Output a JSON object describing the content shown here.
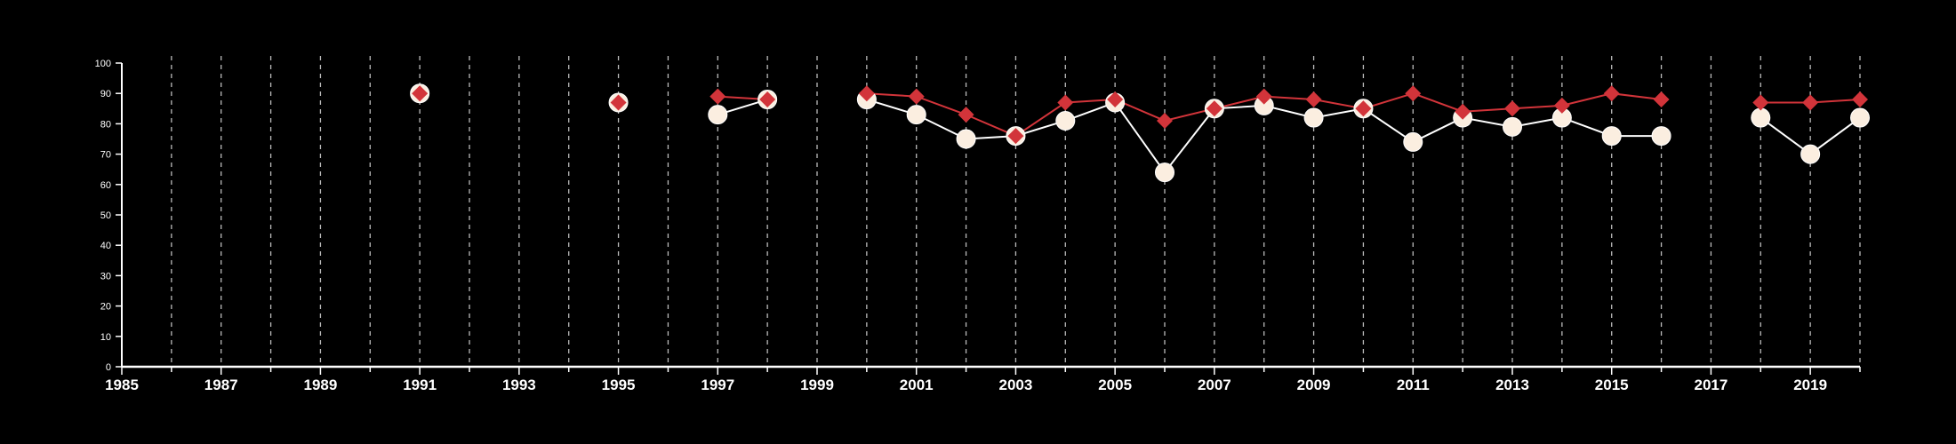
{
  "chart_data": {
    "type": "line",
    "title": "",
    "xlabel": "",
    "ylabel": "",
    "xlim": [
      1985,
      2020
    ],
    "ylim": [
      0,
      100
    ],
    "y_ticks": [
      0,
      10,
      20,
      30,
      40,
      50,
      60,
      70,
      80,
      90,
      100
    ],
    "x_tick_labels": [
      1985,
      1987,
      1989,
      1991,
      1993,
      1995,
      1997,
      1999,
      2001,
      2003,
      2005,
      2007,
      2009,
      2011,
      2013,
      2015,
      2017,
      2019
    ],
    "grid": "vertical dashed at each year",
    "legend": "none",
    "colors": {
      "background": "#000000",
      "axis": "#ffffff",
      "grid": "#bbbbbb",
      "series_circle_fill": "#fbeee0",
      "series_circle_line": "#ffffff",
      "series_diamond": "#d2343a"
    },
    "series": [
      {
        "marker": "circle",
        "color": "#fbeee0",
        "points": [
          [
            1991,
            90
          ],
          [
            1995,
            87
          ],
          [
            1997,
            83
          ],
          [
            1998,
            88
          ],
          [
            2000,
            88
          ],
          [
            2001,
            83
          ],
          [
            2002,
            75
          ],
          [
            2003,
            76
          ],
          [
            2004,
            81
          ],
          [
            2005,
            87
          ],
          [
            2006,
            64
          ],
          [
            2007,
            85
          ],
          [
            2008,
            86
          ],
          [
            2009,
            82
          ],
          [
            2010,
            85
          ],
          [
            2011,
            74
          ],
          [
            2012,
            82
          ],
          [
            2013,
            79
          ],
          [
            2014,
            82
          ],
          [
            2015,
            76
          ],
          [
            2016,
            76
          ],
          [
            2018,
            82
          ],
          [
            2019,
            70
          ],
          [
            2020,
            82
          ]
        ]
      },
      {
        "marker": "diamond",
        "color": "#d2343a",
        "points": [
          [
            1991,
            90
          ],
          [
            1995,
            87
          ],
          [
            1997,
            89
          ],
          [
            1998,
            88
          ],
          [
            2000,
            90
          ],
          [
            2001,
            89
          ],
          [
            2002,
            83
          ],
          [
            2003,
            76
          ],
          [
            2004,
            87
          ],
          [
            2005,
            88
          ],
          [
            2006,
            81
          ],
          [
            2007,
            85
          ],
          [
            2008,
            89
          ],
          [
            2009,
            88
          ],
          [
            2010,
            85
          ],
          [
            2011,
            90
          ],
          [
            2012,
            84
          ],
          [
            2013,
            85
          ],
          [
            2014,
            86
          ],
          [
            2015,
            90
          ],
          [
            2016,
            88
          ],
          [
            2018,
            87
          ],
          [
            2019,
            87
          ],
          [
            2020,
            88
          ]
        ]
      }
    ]
  }
}
